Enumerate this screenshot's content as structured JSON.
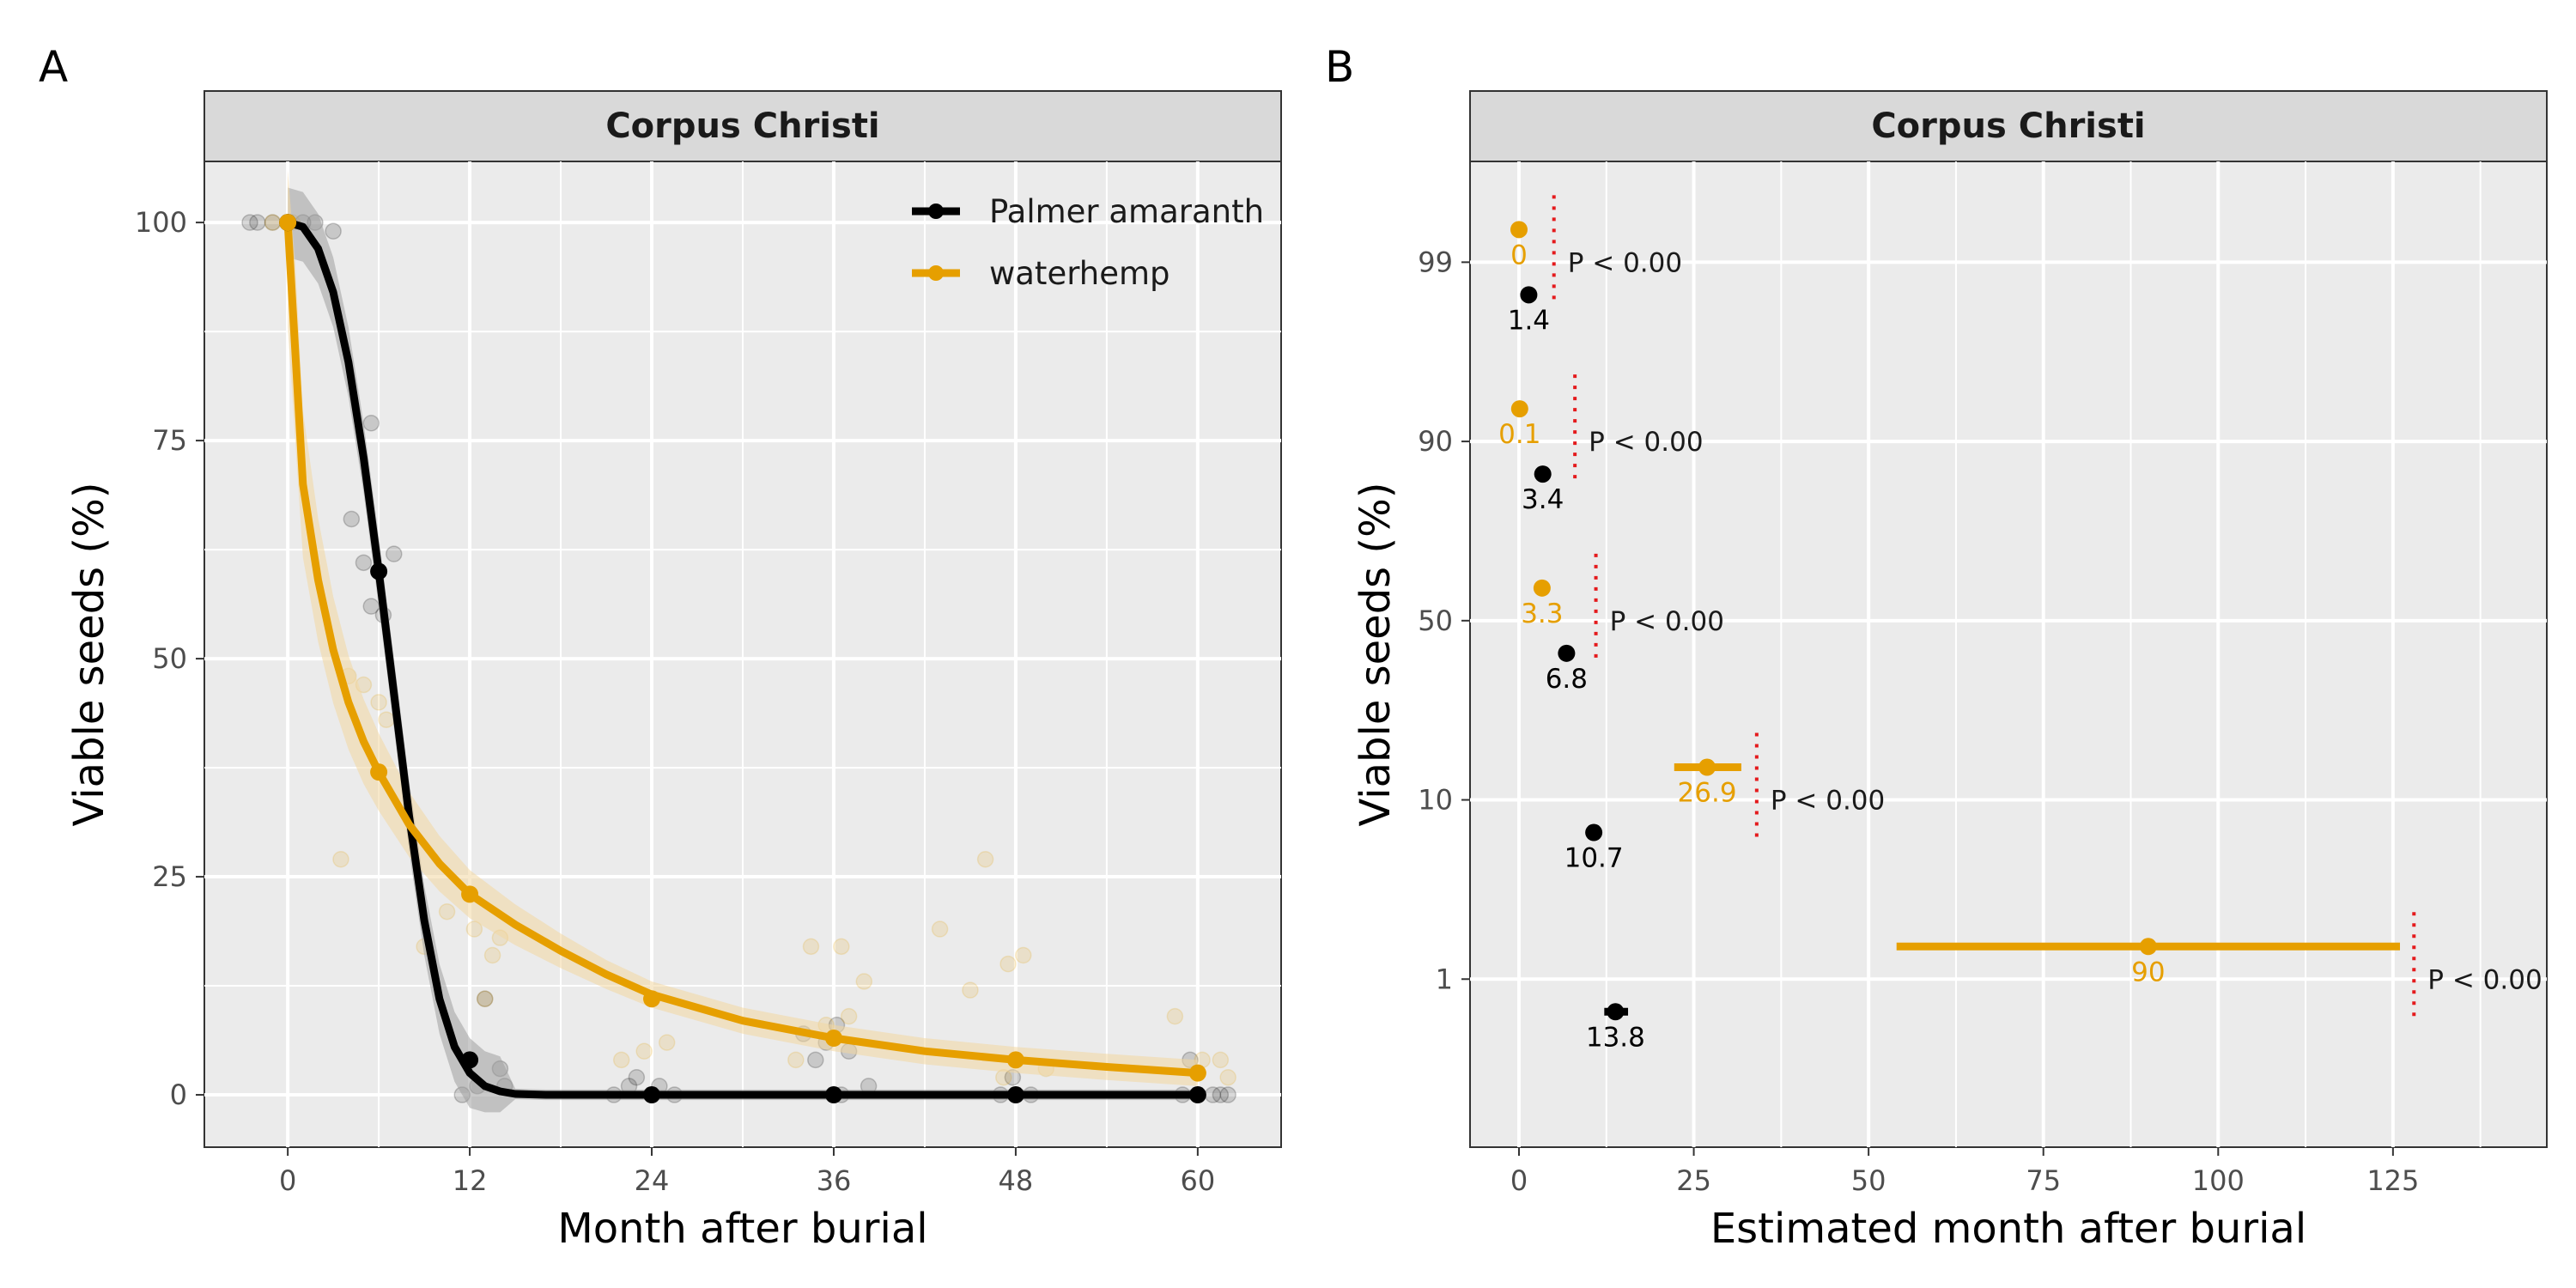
{
  "panels": [
    {
      "tag": "A",
      "strip": "Corpus Christi",
      "xlabel": "Month after burial",
      "ylabel": "Viable seeds (%)",
      "xticks": [
        "0",
        "12",
        "24",
        "36",
        "48",
        "60"
      ],
      "yticks": [
        "0",
        "25",
        "50",
        "75",
        "100"
      ],
      "legend": [
        "Palmer amaranth",
        "waterhemp"
      ]
    },
    {
      "tag": "B",
      "strip": "Corpus Christi",
      "xlabel": "Estimated month after burial",
      "ylabel": "Viable seeds (%)",
      "xticks": [
        "0",
        "25",
        "50",
        "75",
        "100",
        "125"
      ],
      "yticks": [
        "1",
        "10",
        "50",
        "90",
        "99"
      ]
    }
  ],
  "colors": {
    "palmer": "#000000",
    "waterhemp": "#E69F00",
    "pline": "#E41A1C",
    "panel_bg": "#EBEBEB",
    "strip_bg": "#D9D9D9",
    "grid": "#FFFFFF"
  },
  "chart_data": [
    {
      "type": "line",
      "title": "Corpus Christi",
      "xlabel": "Month after burial",
      "ylabel": "Viable seeds (%)",
      "xlim": [
        -5.5,
        65.5
      ],
      "ylim": [
        -6,
        107
      ],
      "grid": true,
      "legend_position": "top-right",
      "series": [
        {
          "name": "Palmer amaranth",
          "color": "#000000",
          "mean_points": [
            [
              0,
              100
            ],
            [
              6,
              60
            ],
            [
              12,
              4
            ],
            [
              24,
              0
            ],
            [
              36,
              0
            ],
            [
              48,
              0
            ],
            [
              60,
              0
            ]
          ],
          "fitted_curve": [
            [
              0,
              100
            ],
            [
              1,
              99.5
            ],
            [
              2,
              97
            ],
            [
              3,
              92
            ],
            [
              4,
              84
            ],
            [
              5,
              73
            ],
            [
              6,
              60
            ],
            [
              7,
              46
            ],
            [
              8,
              32
            ],
            [
              9,
              20
            ],
            [
              10,
              11
            ],
            [
              11,
              5.5
            ],
            [
              12,
              2.5
            ],
            [
              13,
              1
            ],
            [
              14,
              0.4
            ],
            [
              15,
              0.1
            ],
            [
              17,
              0
            ],
            [
              24,
              0
            ],
            [
              36,
              0
            ],
            [
              48,
              0
            ],
            [
              60,
              0
            ]
          ],
          "observations": [
            [
              -2.5,
              100
            ],
            [
              -2,
              100
            ],
            [
              -1,
              100
            ],
            [
              1,
              100
            ],
            [
              1.8,
              100
            ],
            [
              3,
              99
            ],
            [
              4.2,
              66
            ],
            [
              5,
              61
            ],
            [
              5.5,
              56
            ],
            [
              5.5,
              77
            ],
            [
              6.3,
              55
            ],
            [
              7,
              62
            ],
            [
              11.5,
              0
            ],
            [
              12.5,
              1
            ],
            [
              13,
              11
            ],
            [
              14,
              3
            ],
            [
              14.3,
              1
            ],
            [
              21.5,
              0
            ],
            [
              22.5,
              1
            ],
            [
              23,
              2
            ],
            [
              24.5,
              1
            ],
            [
              25.5,
              0
            ],
            [
              34,
              7
            ],
            [
              34.8,
              4
            ],
            [
              35.5,
              6
            ],
            [
              36.2,
              8
            ],
            [
              36.5,
              0
            ],
            [
              37,
              5
            ],
            [
              38.3,
              1
            ],
            [
              47,
              0
            ],
            [
              47.8,
              2
            ],
            [
              49,
              0
            ],
            [
              59,
              0
            ],
            [
              59.5,
              4
            ],
            [
              61,
              0
            ],
            [
              61.5,
              0
            ],
            [
              62,
              0
            ]
          ]
        },
        {
          "name": "waterhemp",
          "color": "#E69F00",
          "mean_points": [
            [
              0,
              100
            ],
            [
              6,
              37
            ],
            [
              12,
              23
            ],
            [
              24,
              11
            ],
            [
              36,
              6.5
            ],
            [
              48,
              4
            ],
            [
              60,
              2.5
            ]
          ],
          "fitted_curve": [
            [
              0,
              100
            ],
            [
              0.5,
              85
            ],
            [
              1,
              70
            ],
            [
              2,
              59
            ],
            [
              3,
              51
            ],
            [
              4,
              45
            ],
            [
              5,
              40.5
            ],
            [
              6,
              37
            ],
            [
              8,
              31
            ],
            [
              10,
              26.5
            ],
            [
              12,
              23
            ],
            [
              15,
              19.5
            ],
            [
              18,
              16.5
            ],
            [
              21,
              13.8
            ],
            [
              24,
              11.5
            ],
            [
              30,
              8.5
            ],
            [
              36,
              6.5
            ],
            [
              42,
              5
            ],
            [
              48,
              4
            ],
            [
              54,
              3.2
            ],
            [
              60,
              2.5
            ]
          ],
          "observations": [
            [
              -1,
              100
            ],
            [
              0.3,
              100
            ],
            [
              3.5,
              27
            ],
            [
              4,
              48
            ],
            [
              5,
              47
            ],
            [
              6,
              45
            ],
            [
              6.5,
              43
            ],
            [
              9,
              17
            ],
            [
              10.5,
              21
            ],
            [
              12.3,
              19
            ],
            [
              13,
              11
            ],
            [
              13.5,
              16
            ],
            [
              14,
              18
            ],
            [
              22,
              4
            ],
            [
              23.5,
              5
            ],
            [
              25,
              6
            ],
            [
              33.5,
              4
            ],
            [
              34.5,
              17
            ],
            [
              35.5,
              8
            ],
            [
              36.5,
              17
            ],
            [
              37,
              9
            ],
            [
              38,
              13
            ],
            [
              43,
              19
            ],
            [
              45,
              12
            ],
            [
              46,
              27
            ],
            [
              47.5,
              15
            ],
            [
              47.2,
              2
            ],
            [
              48.5,
              16
            ],
            [
              50,
              3
            ],
            [
              58.5,
              9
            ],
            [
              60.3,
              4
            ],
            [
              61.5,
              4
            ],
            [
              62,
              2
            ]
          ]
        }
      ]
    },
    {
      "type": "scatter",
      "title": "Corpus Christi",
      "xlabel": "Estimated month after burial",
      "ylabel": "Viable seeds (%)",
      "xlim": [
        -7,
        147
      ],
      "y_categories": [
        "1",
        "10",
        "50",
        "90",
        "99"
      ],
      "grid": true,
      "series": [
        {
          "name": "Palmer amaranth",
          "color": "#000000",
          "points": [
            {
              "y": "99",
              "x": 1.4,
              "label": "1.4"
            },
            {
              "y": "90",
              "x": 3.4,
              "label": "3.4"
            },
            {
              "y": "50",
              "x": 6.8,
              "label": "6.8"
            },
            {
              "y": "10",
              "x": 10.7,
              "label": "10.7"
            },
            {
              "y": "1",
              "x": 13.8,
              "low": 12.2,
              "high": 15.6,
              "label": "13.8"
            }
          ]
        },
        {
          "name": "waterhemp",
          "color": "#E69F00",
          "points": [
            {
              "y": "99",
              "x": 0,
              "label": "0"
            },
            {
              "y": "90",
              "x": 0.1,
              "label": "0.1"
            },
            {
              "y": "50",
              "x": 3.3,
              "label": "3.3"
            },
            {
              "y": "10",
              "x": 26.9,
              "low": 22.2,
              "high": 31.8,
              "label": "26.9"
            },
            {
              "y": "1",
              "x": 90,
              "low": 54,
              "high": 126,
              "label": "90"
            }
          ]
        }
      ],
      "p_values": [
        {
          "y": "99",
          "label": "P < 0.00",
          "x": 5
        },
        {
          "y": "90",
          "label": "P < 0.00",
          "x": 8
        },
        {
          "y": "50",
          "label": "P < 0.00",
          "x": 11
        },
        {
          "y": "10",
          "label": "P < 0.00",
          "x": 34
        },
        {
          "y": "1",
          "label": "P < 0.00",
          "x": 128
        }
      ]
    }
  ]
}
